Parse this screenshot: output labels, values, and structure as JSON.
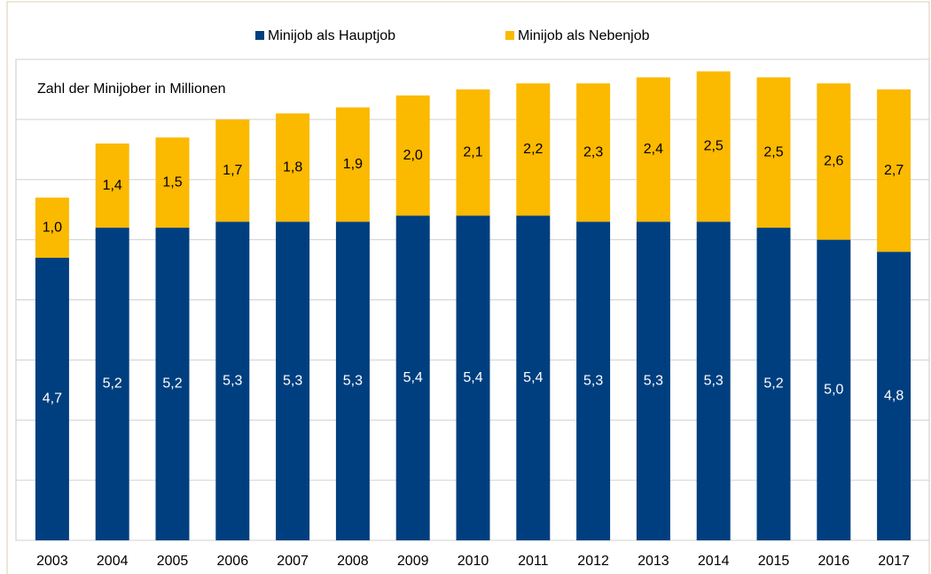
{
  "chart_data": {
    "type": "stacked_bar",
    "annotation": "Zahl der Minijober in Millionen",
    "categories": [
      "2003",
      "2004",
      "2005",
      "2006",
      "2007",
      "2008",
      "2009",
      "2010",
      "2011",
      "2012",
      "2013",
      "2014",
      "2015",
      "2016",
      "2017"
    ],
    "series": [
      {
        "name": "Minijob als Hauptjob",
        "color": "#003f7f",
        "label_color": "#ffffff",
        "values": [
          4.7,
          5.2,
          5.2,
          5.3,
          5.3,
          5.3,
          5.4,
          5.4,
          5.4,
          5.3,
          5.3,
          5.3,
          5.2,
          5.0,
          4.8
        ],
        "value_labels": [
          "4,7",
          "5,2",
          "5,2",
          "5,3",
          "5,3",
          "5,3",
          "5,4",
          "5,4",
          "5,4",
          "5,3",
          "5,3",
          "5,3",
          "5,2",
          "5,0",
          "4,8"
        ]
      },
      {
        "name": "Minijob als Nebenjob",
        "color": "#fbb900",
        "label_color": "#000000",
        "values": [
          1.0,
          1.4,
          1.5,
          1.7,
          1.8,
          1.9,
          2.0,
          2.1,
          2.2,
          2.3,
          2.4,
          2.5,
          2.5,
          2.6,
          2.7
        ],
        "value_labels": [
          "1,0",
          "1,4",
          "1,5",
          "1,7",
          "1,8",
          "1,9",
          "2,0",
          "2,1",
          "2,2",
          "2,3",
          "2,4",
          "2,5",
          "2,5",
          "2,6",
          "2,7"
        ]
      }
    ],
    "ylim": [
      0,
      8
    ],
    "yticks": [
      0,
      1,
      2,
      3,
      4,
      5,
      6,
      7,
      8
    ],
    "grid": true
  }
}
